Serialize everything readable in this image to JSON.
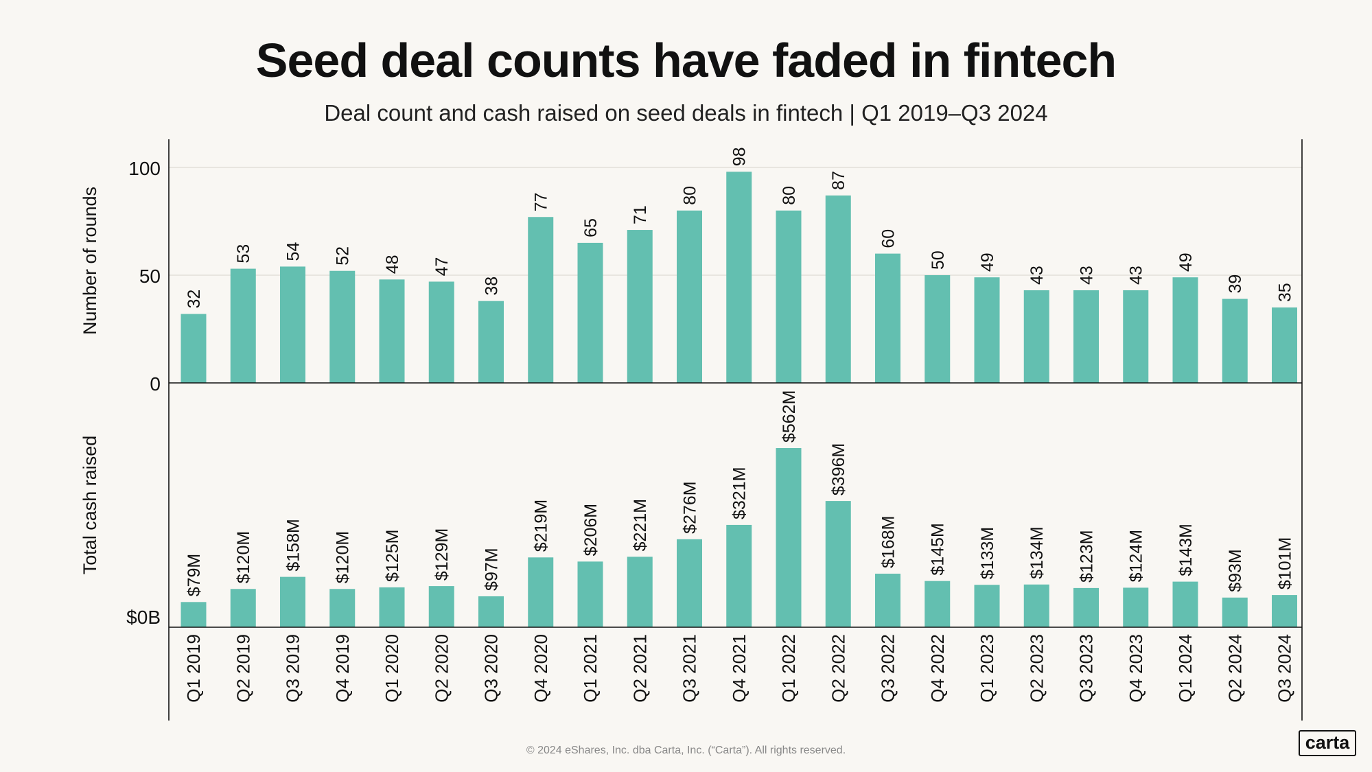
{
  "title": "Seed deal counts have faded in fintech",
  "subtitle": "Deal count and cash raised on seed deals in fintech | Q1 2019–Q3 2024",
  "footer": "© 2024 eShares, Inc. dba Carta, Inc. (“Carta”). All rights reserved.",
  "logo": "carta",
  "colors": {
    "bar": "#63bfb0",
    "grid": "#dddad3",
    "axis": "#111111",
    "background": "#f9f7f3"
  },
  "chart_data": [
    {
      "type": "bar",
      "title": "Number of rounds",
      "ylabel": "Number of rounds",
      "ylim": [
        0,
        112
      ],
      "yticks": [
        0,
        50,
        100
      ],
      "ytick_labels": [
        "0",
        "50",
        "100"
      ],
      "grid": true,
      "categories": [
        "Q1 2019",
        "Q2 2019",
        "Q3 2019",
        "Q4 2019",
        "Q1 2020",
        "Q2 2020",
        "Q3 2020",
        "Q4 2020",
        "Q1 2021",
        "Q2 2021",
        "Q3 2021",
        "Q4 2021",
        "Q1 2022",
        "Q2 2022",
        "Q3 2022",
        "Q4 2022",
        "Q1 2023",
        "Q2 2023",
        "Q3 2023",
        "Q4 2023",
        "Q1 2024",
        "Q2 2024",
        "Q3 2024"
      ],
      "values": [
        32,
        53,
        54,
        52,
        48,
        47,
        38,
        77,
        65,
        71,
        80,
        98,
        80,
        87,
        60,
        50,
        49,
        43,
        43,
        43,
        49,
        39,
        35
      ],
      "labels": [
        "32",
        "53",
        "54",
        "52",
        "48",
        "47",
        "38",
        "77",
        "65",
        "71",
        "80",
        "98",
        "80",
        "87",
        "60",
        "50",
        "49",
        "43",
        "43",
        "43",
        "49",
        "39",
        "35"
      ]
    },
    {
      "type": "bar",
      "title": "Total cash raised",
      "ylabel": "Total cash raised",
      "unit": "millions USD",
      "ylim": [
        0,
        720
      ],
      "yticks": [
        0
      ],
      "ytick_labels": [
        "$0B"
      ],
      "grid": false,
      "categories": [
        "Q1 2019",
        "Q2 2019",
        "Q3 2019",
        "Q4 2019",
        "Q1 2020",
        "Q2 2020",
        "Q3 2020",
        "Q4 2020",
        "Q1 2021",
        "Q2 2021",
        "Q3 2021",
        "Q4 2021",
        "Q1 2022",
        "Q2 2022",
        "Q3 2022",
        "Q4 2022",
        "Q1 2023",
        "Q2 2023",
        "Q3 2023",
        "Q4 2023",
        "Q1 2024",
        "Q2 2024",
        "Q3 2024"
      ],
      "values": [
        79,
        120,
        158,
        120,
        125,
        129,
        97,
        219,
        206,
        221,
        276,
        321,
        562,
        396,
        168,
        145,
        133,
        134,
        123,
        124,
        143,
        93,
        101
      ],
      "labels": [
        "$79M",
        "$120M",
        "$158M",
        "$120M",
        "$125M",
        "$129M",
        "$97M",
        "$219M",
        "$206M",
        "$221M",
        "$276M",
        "$321M",
        "$562M",
        "$396M",
        "$168M",
        "$145M",
        "$133M",
        "$134M",
        "$123M",
        "$124M",
        "$143M",
        "$93M",
        "$101M"
      ]
    }
  ]
}
